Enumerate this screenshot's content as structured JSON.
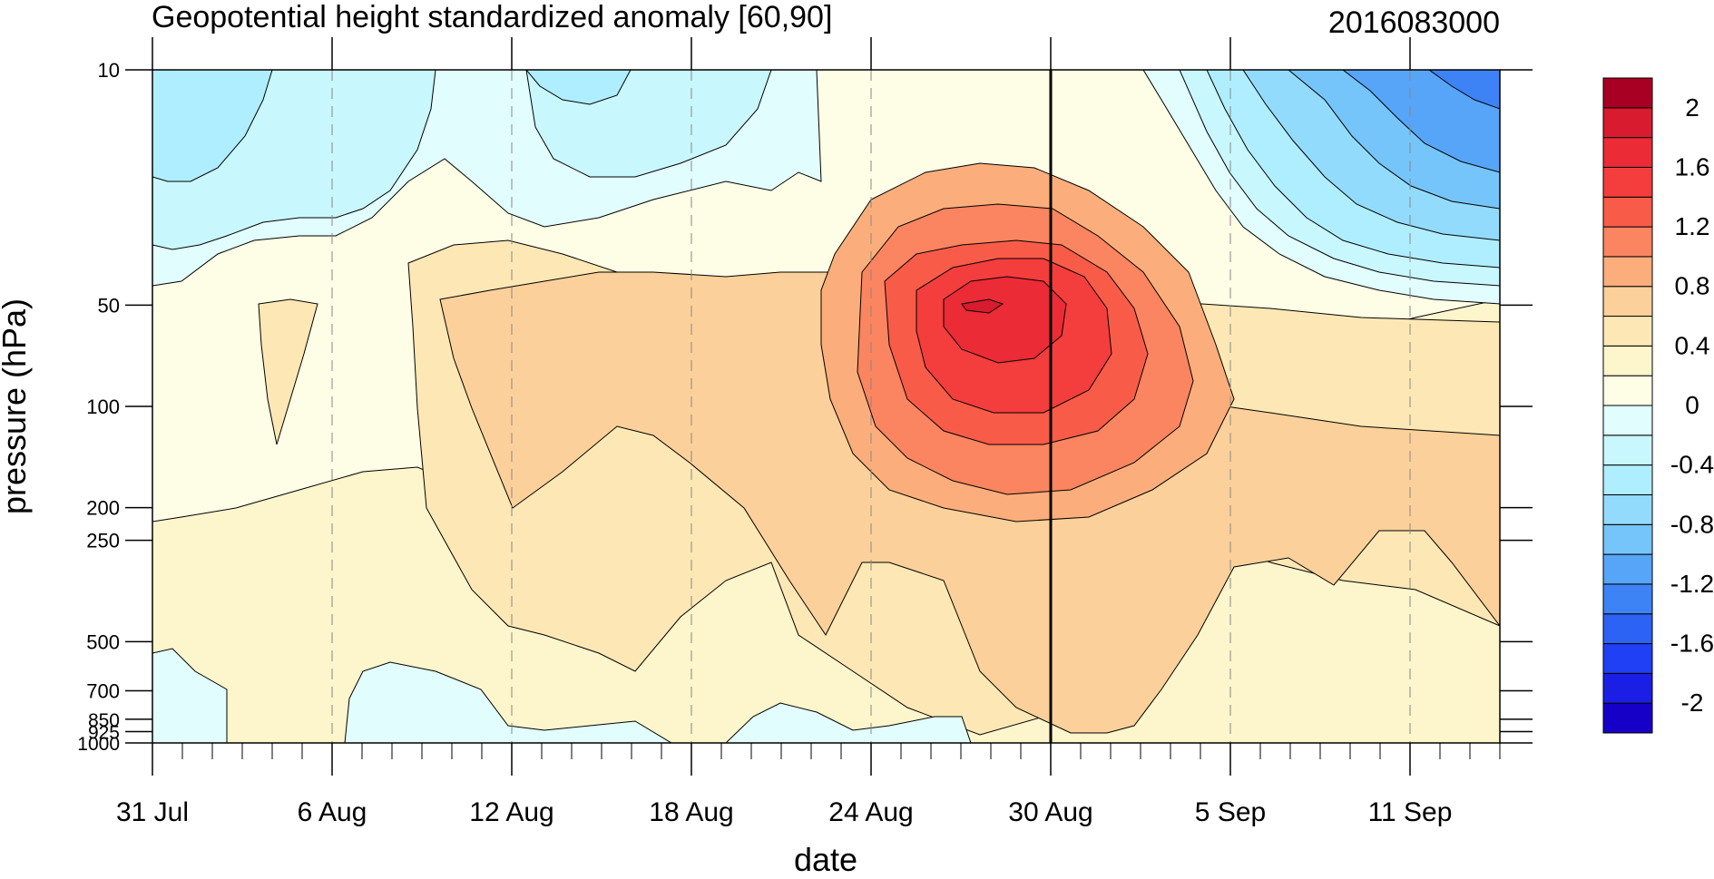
{
  "chart_data": {
    "type": "heatmap",
    "title": "Geopotential height standardized anomaly [60,90]",
    "timestamp": "2016083000",
    "xlabel": "date",
    "ylabel": "pressure (hPa)",
    "x_range": [
      "2016-07-31",
      "2016-09-14"
    ],
    "y_scale": "log",
    "y_range": [
      1000,
      10
    ],
    "x_ticks": [
      {
        "date": "2016-07-31",
        "label": "31 Jul"
      },
      {
        "date": "2016-08-06",
        "label": "6 Aug"
      },
      {
        "date": "2016-08-12",
        "label": "12 Aug"
      },
      {
        "date": "2016-08-18",
        "label": "18 Aug"
      },
      {
        "date": "2016-08-24",
        "label": "24 Aug"
      },
      {
        "date": "2016-08-30",
        "label": "30 Aug"
      },
      {
        "date": "2016-09-05",
        "label": "5 Sep"
      },
      {
        "date": "2016-09-11",
        "label": "11 Sep"
      }
    ],
    "y_ticks": [
      {
        "value": 10,
        "label": "10"
      },
      {
        "value": 50,
        "label": "50"
      },
      {
        "value": 100,
        "label": "100"
      },
      {
        "value": 200,
        "label": "200"
      },
      {
        "value": 250,
        "label": "250"
      },
      {
        "value": 500,
        "label": "500"
      },
      {
        "value": 700,
        "label": "700"
      },
      {
        "value": 850,
        "label": "850"
      },
      {
        "value": 925,
        "label": "925"
      },
      {
        "value": 1000,
        "label": "1000"
      }
    ],
    "highlight_date": "2016-08-30",
    "grid": "dashed vertical lines at date ticks",
    "legend": {
      "position": "right",
      "levels": [
        -2.2,
        -2,
        -1.8,
        -1.6,
        -1.4,
        -1.2,
        -1,
        -0.8,
        -0.6,
        -0.4,
        -0.2,
        0,
        0.2,
        0.4,
        0.6,
        0.8,
        1,
        1.2,
        1.4,
        1.6,
        1.8,
        2,
        2.2
      ],
      "labels": [
        {
          "value": -2,
          "label": "-2"
        },
        {
          "value": -1.6,
          "label": "-1.6"
        },
        {
          "value": -1.2,
          "label": "-1.2"
        },
        {
          "value": -0.8,
          "label": "-0.8"
        },
        {
          "value": -0.4,
          "label": "-0.4"
        },
        {
          "value": 0,
          "label": "0"
        },
        {
          "value": 0.4,
          "label": "0.4"
        },
        {
          "value": 0.8,
          "label": "0.8"
        },
        {
          "value": 1.2,
          "label": "1.2"
        },
        {
          "value": 1.6,
          "label": "1.6"
        },
        {
          "value": 2,
          "label": "2"
        }
      ],
      "colors": [
        "#1600c8",
        "#1b1fe5",
        "#2040f5",
        "#2c63f5",
        "#3d83f6",
        "#57a5f8",
        "#75c5fa",
        "#93dbfc",
        "#afeefe",
        "#c8f7fe",
        "#e2fdfe",
        "#fefde6",
        "#fdf5cb",
        "#fde8b5",
        "#fcd09a",
        "#fbae7b",
        "#fa8560",
        "#f85c48",
        "#f43d3d",
        "#eb2b36",
        "#d81b2e",
        "#a80022"
      ]
    },
    "features": [
      {
        "desc": "positive anomaly maximum",
        "date": "2016-08-28",
        "pressure": 55,
        "value": 1.7
      },
      {
        "desc": "negative anomaly upper right",
        "date": "2016-09-14",
        "pressure": 12,
        "value": -1.0
      },
      {
        "desc": "negative anomaly upper left",
        "date": "2016-08-04",
        "pressure": 15,
        "value": -0.4
      }
    ]
  }
}
